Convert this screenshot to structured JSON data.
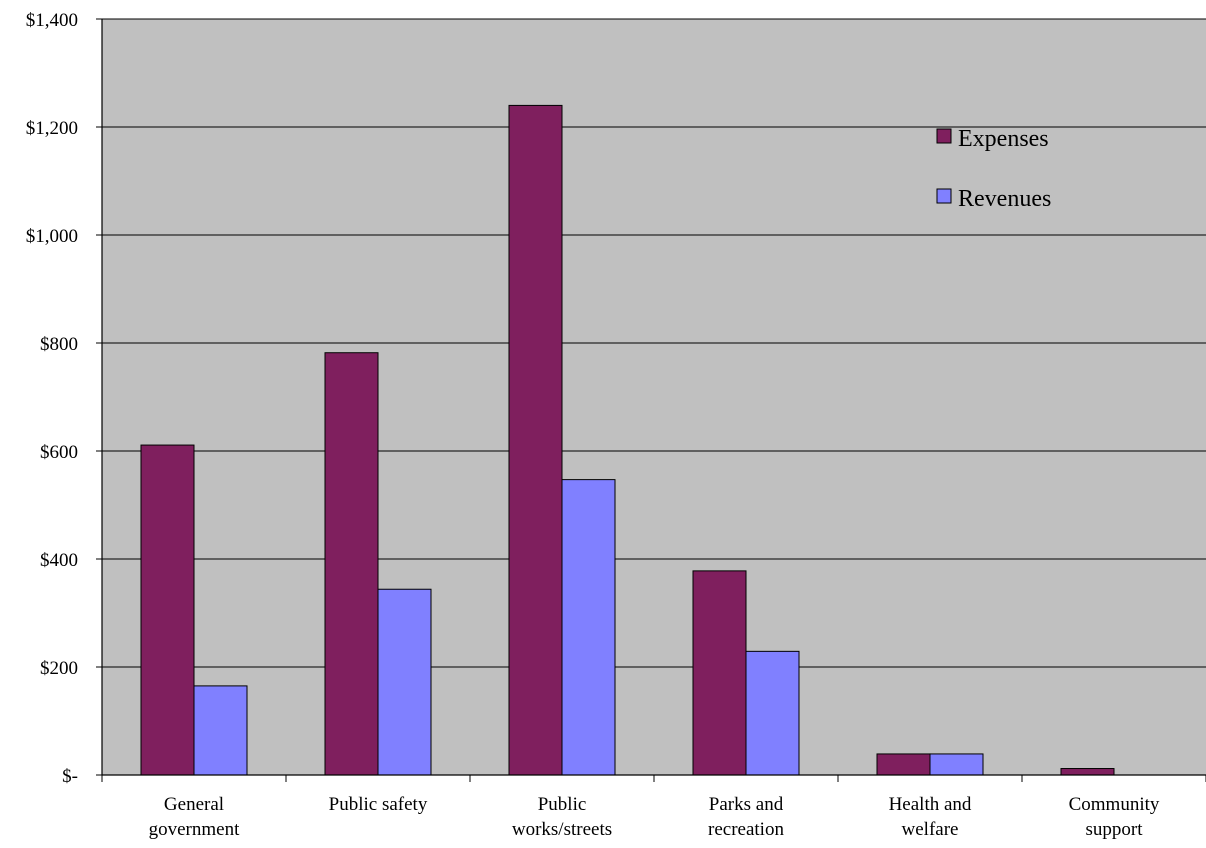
{
  "chart_data": {
    "type": "bar",
    "categories": [
      [
        "General",
        "government"
      ],
      [
        "Public safety"
      ],
      [
        "Public",
        "works/streets"
      ],
      [
        "Parks and",
        "recreation"
      ],
      [
        "Health and",
        "welfare"
      ],
      [
        "Community",
        "support"
      ]
    ],
    "series": [
      {
        "name": "Expenses",
        "color": "#7f1f5e",
        "values": [
          611,
          782,
          1240,
          378,
          39,
          12
        ]
      },
      {
        "name": "Revenues",
        "color": "#8080ff",
        "values": [
          165,
          344,
          547,
          229,
          39,
          0
        ]
      }
    ],
    "ylim": [
      0,
      1400
    ],
    "ytick_step": 200,
    "ytick_labels": [
      "$-",
      "$200",
      "$400",
      "$600",
      "$800",
      "$1,000",
      "$1,200",
      "$1,400"
    ],
    "grid": true,
    "plot_background": "#c0c0c0",
    "legend_position": "top-right",
    "title": "",
    "xlabel": "",
    "ylabel": ""
  }
}
